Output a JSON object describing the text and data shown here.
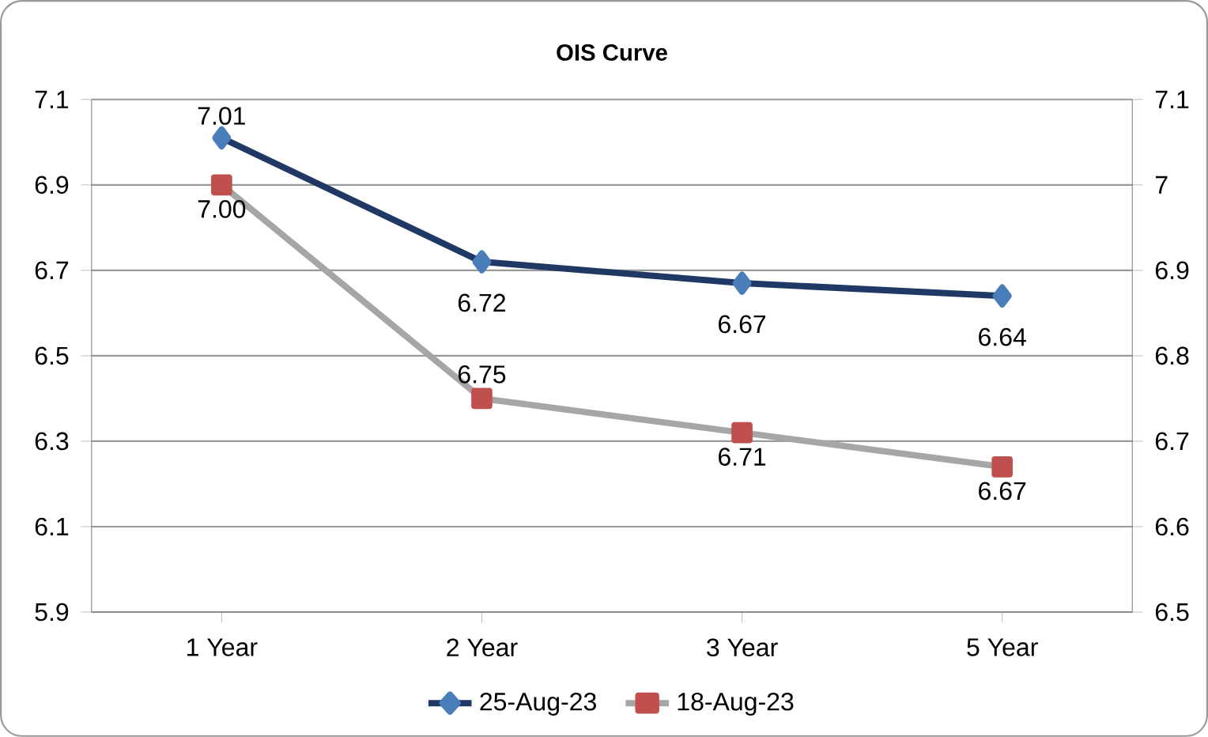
{
  "chart_data": {
    "type": "line",
    "title": "OIS Curve",
    "categories": [
      "1 Year",
      "2 Year",
      "3 Year",
      "5 Year"
    ],
    "series": [
      {
        "name": "25-Aug-23",
        "color": "#1f3864",
        "colors": [
          "#4a7ebb",
          "#4a7ebb",
          "#4a7ebb",
          "#4a7ebb"
        ],
        "marker": "diamond",
        "values": [
          7.01,
          6.72,
          6.67,
          6.64
        ],
        "value_labels": [
          "7.01",
          "6.72",
          "6.67",
          "6.64"
        ]
      },
      {
        "name": "18-Aug-23",
        "color": "#a6a6a6",
        "colors": [
          "#c0504d",
          "#c0504d",
          "#c0504d",
          "#c0504d"
        ],
        "marker": "square",
        "axis": "y2",
        "values": [
          7.0,
          6.75,
          6.71,
          6.67
        ],
        "value_labels": [
          "7.00",
          "6.75",
          "6.71",
          "6.67"
        ]
      }
    ],
    "ylim": [
      5.9,
      7.1
    ],
    "yticks": [
      5.9,
      6.1,
      6.3,
      6.5,
      6.7,
      6.9,
      7.1
    ],
    "y2lim": [
      6.5,
      7.1
    ],
    "y2ticks": [
      6.5,
      6.6,
      6.7,
      6.8,
      6.9,
      7,
      7.1
    ],
    "grid": "y",
    "legend": "bottom",
    "data_labels": true,
    "line_style": "solid"
  }
}
